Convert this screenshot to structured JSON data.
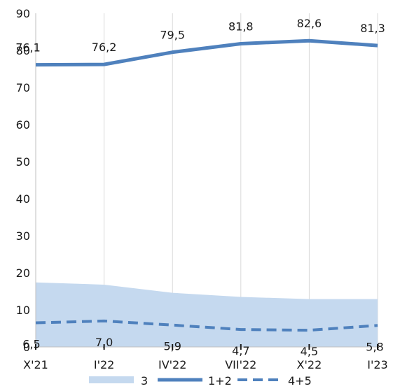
{
  "chart_data": {
    "type": "line",
    "categories": [
      "X'21",
      "I'22",
      "IV'22",
      "VII'22",
      "X'22",
      "I'23"
    ],
    "ylim": [
      0,
      90
    ],
    "yticks": [
      0,
      10,
      20,
      30,
      40,
      50,
      60,
      70,
      80,
      90
    ],
    "grid": "vertical",
    "legend_position": "bottom",
    "series": [
      {
        "name": "3",
        "kind": "area",
        "color": "#c5d9ef",
        "values": [
          17.4,
          16.8,
          14.6,
          13.5,
          12.9,
          12.9
        ]
      },
      {
        "name": "1+2",
        "kind": "line",
        "style": "solid",
        "color": "#4f81bd",
        "values": [
          76.1,
          76.2,
          79.5,
          81.8,
          82.6,
          81.3
        ],
        "labels": [
          "76,1",
          "76,2",
          "79,5",
          "81,8",
          "82,6",
          "81,3"
        ]
      },
      {
        "name": "4+5",
        "kind": "line",
        "style": "dashed",
        "color": "#4f81bd",
        "values": [
          6.5,
          7.0,
          5.9,
          4.7,
          4.5,
          5.8
        ],
        "labels": [
          "6,5",
          "7,0",
          "5,9",
          "4,7",
          "4,5",
          "5,8"
        ]
      }
    ]
  }
}
